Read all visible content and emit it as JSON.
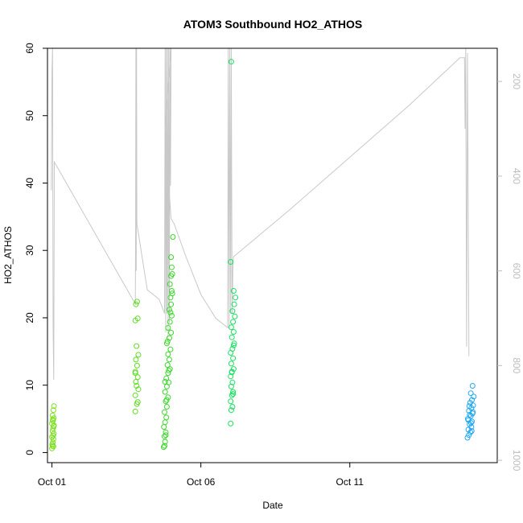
{
  "chart_data": {
    "type": "scatter",
    "title": "ATOM3 Southbound HO2_ATHOS",
    "xlabel": "Date",
    "ylabel": "HO2_ATHOS",
    "x_unit": "day of October (fractional)",
    "xlim": [
      0.85,
      15.95
    ],
    "ylim": [
      -1.5,
      60
    ],
    "y_ticks": [
      0,
      10,
      20,
      30,
      40,
      50,
      60
    ],
    "x_ticks": [
      {
        "value": 1,
        "label": "Oct 01"
      },
      {
        "value": 6,
        "label": "Oct 06"
      },
      {
        "value": 11,
        "label": "Oct 11"
      }
    ],
    "y2_ticks": [
      200,
      400,
      600,
      800,
      1000
    ],
    "y2lim": [
      130,
      1005
    ],
    "y2_inverted": true,
    "grid": false,
    "legend": "none",
    "point_colors_note": "points colored by latitude gradient",
    "colors": {
      "altitude_line": "#c8c8c8",
      "axis": "#000000",
      "right_axis": "#bdbdbd",
      "green_north": "#7de020",
      "green_mid": "#3ad82a",
      "green_south": "#18e060",
      "blue": "#20a8f0"
    },
    "series": [
      {
        "color": "#7de020",
        "points": [
          [
            1.0,
            0.6
          ],
          [
            1.02,
            1.0
          ],
          [
            1.03,
            1.5
          ],
          [
            1.05,
            2.0
          ],
          [
            1.0,
            2.3
          ],
          [
            1.06,
            2.8
          ],
          [
            1.02,
            3.2
          ],
          [
            1.04,
            3.6
          ],
          [
            1.07,
            4.0
          ],
          [
            1.0,
            4.3
          ],
          [
            1.03,
            4.7
          ],
          [
            1.06,
            5.1
          ],
          [
            1.02,
            5.5
          ],
          [
            1.05,
            6.3
          ],
          [
            1.07,
            6.9
          ],
          [
            1.01,
            1.2
          ],
          [
            1.04,
            2.5
          ],
          [
            1.06,
            3.9
          ],
          [
            1.03,
            4.9
          ],
          [
            1.05,
            0.9
          ]
        ]
      },
      {
        "color": "#5fdc22",
        "points": [
          [
            3.8,
            6.1
          ],
          [
            3.85,
            7.2
          ],
          [
            3.8,
            8.5
          ],
          [
            3.9,
            9.4
          ],
          [
            3.82,
            10.5
          ],
          [
            3.88,
            11.2
          ],
          [
            3.8,
            12.0
          ],
          [
            3.86,
            12.9
          ],
          [
            3.82,
            13.8
          ],
          [
            3.9,
            14.5
          ],
          [
            3.84,
            15.8
          ],
          [
            3.8,
            19.6
          ],
          [
            3.88,
            19.9
          ],
          [
            3.82,
            22.0
          ],
          [
            3.86,
            22.4
          ],
          [
            3.84,
            9.9
          ],
          [
            3.88,
            7.5
          ],
          [
            3.8,
            11.8
          ]
        ]
      },
      {
        "color": "#3ad82a",
        "points": [
          [
            4.75,
            0.8
          ],
          [
            4.8,
            1.6
          ],
          [
            4.78,
            2.4
          ],
          [
            4.82,
            3.0
          ],
          [
            4.76,
            3.8
          ],
          [
            4.8,
            4.5
          ],
          [
            4.84,
            5.2
          ],
          [
            4.78,
            6.0
          ],
          [
            4.86,
            6.8
          ],
          [
            4.82,
            7.6
          ],
          [
            4.9,
            8.2
          ],
          [
            4.8,
            9.0
          ],
          [
            4.86,
            9.8
          ],
          [
            4.92,
            10.4
          ],
          [
            4.84,
            11.0
          ],
          [
            4.9,
            11.8
          ],
          [
            4.96,
            12.4
          ],
          [
            4.88,
            13.0
          ],
          [
            4.94,
            13.8
          ],
          [
            4.9,
            14.6
          ],
          [
            4.98,
            15.3
          ],
          [
            4.86,
            16.2
          ],
          [
            4.94,
            17.0
          ],
          [
            5.0,
            17.8
          ],
          [
            4.9,
            18.5
          ],
          [
            4.96,
            19.4
          ],
          [
            5.02,
            20.3
          ],
          [
            4.94,
            21.2
          ],
          [
            5.0,
            22.0
          ],
          [
            4.98,
            23.0
          ],
          [
            5.02,
            24.0
          ],
          [
            4.96,
            25.0
          ],
          [
            5.0,
            26.2
          ],
          [
            5.04,
            26.5
          ],
          [
            5.02,
            27.5
          ],
          [
            5.0,
            29.0
          ],
          [
            5.06,
            32.0
          ],
          [
            4.8,
            10.5
          ],
          [
            4.85,
            7.8
          ],
          [
            4.92,
            12.2
          ],
          [
            4.88,
            16.5
          ],
          [
            4.78,
            1.0
          ],
          [
            4.82,
            2.6
          ],
          [
            4.98,
            20.8
          ],
          [
            5.04,
            23.6
          ]
        ]
      },
      {
        "color": "#18e060",
        "points": [
          [
            7.0,
            4.3
          ],
          [
            7.02,
            6.3
          ],
          [
            7.06,
            6.8
          ],
          [
            7.0,
            7.6
          ],
          [
            7.04,
            8.5
          ],
          [
            7.08,
            9.0
          ],
          [
            7.02,
            9.8
          ],
          [
            7.06,
            10.4
          ],
          [
            7.0,
            11.3
          ],
          [
            7.04,
            11.9
          ],
          [
            7.1,
            12.4
          ],
          [
            7.02,
            13.2
          ],
          [
            7.08,
            14.0
          ],
          [
            7.0,
            14.8
          ],
          [
            7.06,
            15.4
          ],
          [
            7.12,
            16.2
          ],
          [
            7.04,
            17.1
          ],
          [
            7.1,
            17.9
          ],
          [
            7.02,
            18.6
          ],
          [
            7.08,
            19.4
          ],
          [
            7.14,
            20.2
          ],
          [
            7.06,
            21.0
          ],
          [
            7.12,
            22.0
          ],
          [
            7.16,
            23.0
          ],
          [
            7.1,
            24.0
          ],
          [
            7.0,
            28.3
          ],
          [
            7.02,
            58.0
          ],
          [
            7.04,
            12.0
          ],
          [
            7.08,
            8.7
          ],
          [
            7.1,
            15.9
          ]
        ]
      },
      {
        "color": "#20a8f0",
        "points": [
          [
            14.95,
            2.2
          ],
          [
            15.0,
            2.6
          ],
          [
            15.05,
            3.0
          ],
          [
            14.98,
            3.4
          ],
          [
            15.08,
            3.8
          ],
          [
            15.02,
            4.2
          ],
          [
            15.1,
            4.6
          ],
          [
            14.96,
            5.0
          ],
          [
            15.06,
            5.4
          ],
          [
            15.12,
            5.8
          ],
          [
            15.0,
            6.2
          ],
          [
            15.08,
            6.6
          ],
          [
            15.14,
            7.0
          ],
          [
            15.04,
            7.4
          ],
          [
            15.1,
            7.8
          ],
          [
            15.16,
            8.3
          ],
          [
            15.06,
            8.8
          ],
          [
            15.12,
            9.9
          ],
          [
            14.98,
            4.8
          ],
          [
            15.03,
            5.6
          ],
          [
            15.09,
            3.2
          ],
          [
            15.13,
            6.0
          ],
          [
            15.07,
            4.4
          ],
          [
            15.01,
            6.9
          ]
        ]
      }
    ],
    "altitude_track": [
      [
        0.98,
        430
      ],
      [
        1.0,
        180
      ],
      [
        1.02,
        130
      ],
      [
        1.04,
        720
      ],
      [
        1.06,
        830
      ],
      [
        1.08,
        370
      ],
      [
        3.8,
        670
      ],
      [
        3.81,
        500
      ],
      [
        3.82,
        130
      ],
      [
        3.83,
        600
      ],
      [
        3.84,
        130
      ],
      [
        3.85,
        500
      ],
      [
        4.2,
        640
      ],
      [
        4.6,
        660
      ],
      [
        4.78,
        690
      ],
      [
        4.8,
        130
      ],
      [
        4.82,
        730
      ],
      [
        4.84,
        130
      ],
      [
        4.86,
        690
      ],
      [
        4.88,
        130
      ],
      [
        4.9,
        740
      ],
      [
        4.92,
        130
      ],
      [
        4.94,
        710
      ],
      [
        4.96,
        130
      ],
      [
        4.98,
        420
      ],
      [
        5.0,
        130
      ],
      [
        4.8,
        300
      ],
      [
        5.0,
        490
      ],
      [
        5.1,
        500
      ],
      [
        5.5,
        570
      ],
      [
        6.0,
        650
      ],
      [
        6.5,
        700
      ],
      [
        6.9,
        720
      ],
      [
        6.9,
        710
      ],
      [
        6.92,
        130
      ],
      [
        6.95,
        720
      ],
      [
        6.97,
        130
      ],
      [
        7.0,
        690
      ],
      [
        7.02,
        130
      ],
      [
        7.05,
        690
      ],
      [
        7.08,
        580
      ],
      [
        7.1,
        570
      ],
      [
        9.0,
        470
      ],
      [
        11.0,
        360
      ],
      [
        13.0,
        250
      ],
      [
        14.7,
        150
      ],
      [
        14.85,
        150
      ],
      [
        14.87,
        300
      ],
      [
        14.89,
        130
      ],
      [
        14.92,
        760
      ],
      [
        14.95,
        140
      ],
      [
        15.0,
        780
      ]
    ]
  }
}
